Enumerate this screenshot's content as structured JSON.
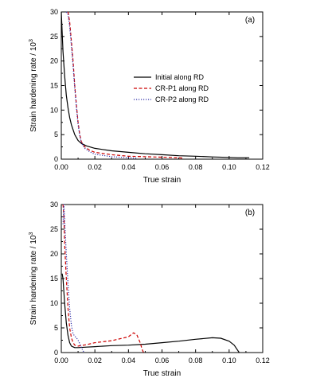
{
  "chart_data": [
    {
      "type": "line",
      "panel_label": "(a)",
      "xlabel": "True strain",
      "ylabel": "Strain hardening rate / 10",
      "ylabel_exponent": "3",
      "xlim": [
        0.0,
        0.12
      ],
      "ylim": [
        0,
        30
      ],
      "x_ticks": [
        "0.00",
        "0.02",
        "0.04",
        "0.06",
        "0.08",
        "0.10",
        "0.12"
      ],
      "y_ticks": [
        "0",
        "5",
        "10",
        "15",
        "20",
        "25",
        "30"
      ],
      "legend_position": "center-right",
      "series": [
        {
          "name": "Initial along RD",
          "color": "#000000",
          "dash": "solid",
          "points": [
            [
              0.0,
              30.0
            ],
            [
              0.001,
              22.0
            ],
            [
              0.002,
              17.0
            ],
            [
              0.003,
              13.0
            ],
            [
              0.004,
              10.5
            ],
            [
              0.005,
              8.5
            ],
            [
              0.006,
              7.0
            ],
            [
              0.008,
              5.0
            ],
            [
              0.01,
              3.8
            ],
            [
              0.012,
              3.2
            ],
            [
              0.015,
              2.7
            ],
            [
              0.02,
              2.2
            ],
            [
              0.03,
              1.7
            ],
            [
              0.04,
              1.4
            ],
            [
              0.05,
              1.1
            ],
            [
              0.06,
              0.9
            ],
            [
              0.07,
              0.7
            ],
            [
              0.08,
              0.6
            ],
            [
              0.09,
              0.45
            ],
            [
              0.1,
              0.35
            ],
            [
              0.105,
              0.3
            ],
            [
              0.112,
              0.3
            ]
          ]
        },
        {
          "name": "CR-P1 along RD",
          "color": "#cc0000",
          "dash": "dashed",
          "points": [
            [
              0.004,
              30.0
            ],
            [
              0.005,
              28.0
            ],
            [
              0.006,
              24.0
            ],
            [
              0.007,
              20.0
            ],
            [
              0.008,
              15.0
            ],
            [
              0.009,
              11.0
            ],
            [
              0.01,
              7.5
            ],
            [
              0.011,
              5.0
            ],
            [
              0.012,
              3.5
            ],
            [
              0.014,
              2.5
            ],
            [
              0.017,
              1.8
            ],
            [
              0.02,
              1.4
            ],
            [
              0.03,
              0.9
            ],
            [
              0.04,
              0.6
            ],
            [
              0.05,
              0.5
            ],
            [
              0.06,
              0.4
            ],
            [
              0.07,
              0.3
            ],
            [
              0.073,
              0.2
            ]
          ]
        },
        {
          "name": "CR-P2 along RD",
          "color": "#3333aa",
          "dash": "dotted",
          "points": [
            [
              0.003,
              30.0
            ],
            [
              0.004,
              29.5
            ],
            [
              0.005,
              27.0
            ],
            [
              0.006,
              23.0
            ],
            [
              0.007,
              19.0
            ],
            [
              0.008,
              14.5
            ],
            [
              0.009,
              10.5
            ],
            [
              0.01,
              7.0
            ],
            [
              0.011,
              4.8
            ],
            [
              0.012,
              3.3
            ],
            [
              0.014,
              2.2
            ],
            [
              0.017,
              1.5
            ],
            [
              0.02,
              1.0
            ],
            [
              0.03,
              0.5
            ],
            [
              0.04,
              0.3
            ],
            [
              0.045,
              0.2
            ]
          ]
        }
      ]
    },
    {
      "type": "line",
      "panel_label": "(b)",
      "xlabel": "True strain",
      "ylabel": "Strain hardening rate / 10",
      "ylabel_exponent": "3",
      "xlim": [
        0.0,
        0.12
      ],
      "ylim": [
        0,
        30
      ],
      "x_ticks": [
        "0.00",
        "0.02",
        "0.04",
        "0.06",
        "0.08",
        "0.10",
        "0.12"
      ],
      "y_ticks": [
        "0",
        "5",
        "10",
        "15",
        "20",
        "25",
        "30"
      ],
      "series": [
        {
          "name": "Initial along RD",
          "color": "#000000",
          "dash": "solid",
          "points": [
            [
              0.0005,
              16.0
            ],
            [
              0.001,
              15.0
            ],
            [
              0.002,
              10.0
            ],
            [
              0.003,
              6.0
            ],
            [
              0.004,
              3.5
            ],
            [
              0.005,
              2.0
            ],
            [
              0.006,
              1.3
            ],
            [
              0.008,
              1.0
            ],
            [
              0.01,
              1.0
            ],
            [
              0.015,
              1.1
            ],
            [
              0.02,
              1.2
            ],
            [
              0.03,
              1.4
            ],
            [
              0.04,
              1.5
            ],
            [
              0.05,
              1.7
            ],
            [
              0.06,
              2.0
            ],
            [
              0.07,
              2.3
            ],
            [
              0.08,
              2.7
            ],
            [
              0.09,
              3.0
            ],
            [
              0.095,
              2.9
            ],
            [
              0.1,
              2.3
            ],
            [
              0.103,
              1.5
            ],
            [
              0.105,
              0.5
            ],
            [
              0.106,
              0.0
            ]
          ]
        },
        {
          "name": "CR-P1 along RD",
          "color": "#cc0000",
          "dash": "dashed",
          "points": [
            [
              0.001,
              30.0
            ],
            [
              0.0015,
              28.0
            ],
            [
              0.002,
              22.0
            ],
            [
              0.003,
              15.0
            ],
            [
              0.004,
              9.0
            ],
            [
              0.005,
              5.0
            ],
            [
              0.006,
              3.0
            ],
            [
              0.007,
              2.0
            ],
            [
              0.008,
              1.5
            ],
            [
              0.01,
              1.3
            ],
            [
              0.015,
              1.6
            ],
            [
              0.02,
              2.0
            ],
            [
              0.03,
              2.4
            ],
            [
              0.04,
              3.2
            ],
            [
              0.043,
              4.0
            ],
            [
              0.045,
              3.6
            ],
            [
              0.047,
              2.0
            ],
            [
              0.048,
              0.8
            ],
            [
              0.049,
              0.0
            ]
          ]
        },
        {
          "name": "CR-P2 along RD",
          "color": "#3333aa",
          "dash": "dotted",
          "points": [
            [
              0.001,
              26.0
            ],
            [
              0.0015,
              30.0
            ],
            [
              0.002,
              27.0
            ],
            [
              0.003,
              20.0
            ],
            [
              0.004,
              14.0
            ],
            [
              0.005,
              9.0
            ],
            [
              0.006,
              5.5
            ],
            [
              0.007,
              3.8
            ],
            [
              0.008,
              3.3
            ],
            [
              0.009,
              3.0
            ],
            [
              0.01,
              2.5
            ],
            [
              0.011,
              1.8
            ],
            [
              0.012,
              1.0
            ],
            [
              0.013,
              0.3
            ],
            [
              0.014,
              0.0
            ]
          ]
        }
      ]
    }
  ]
}
